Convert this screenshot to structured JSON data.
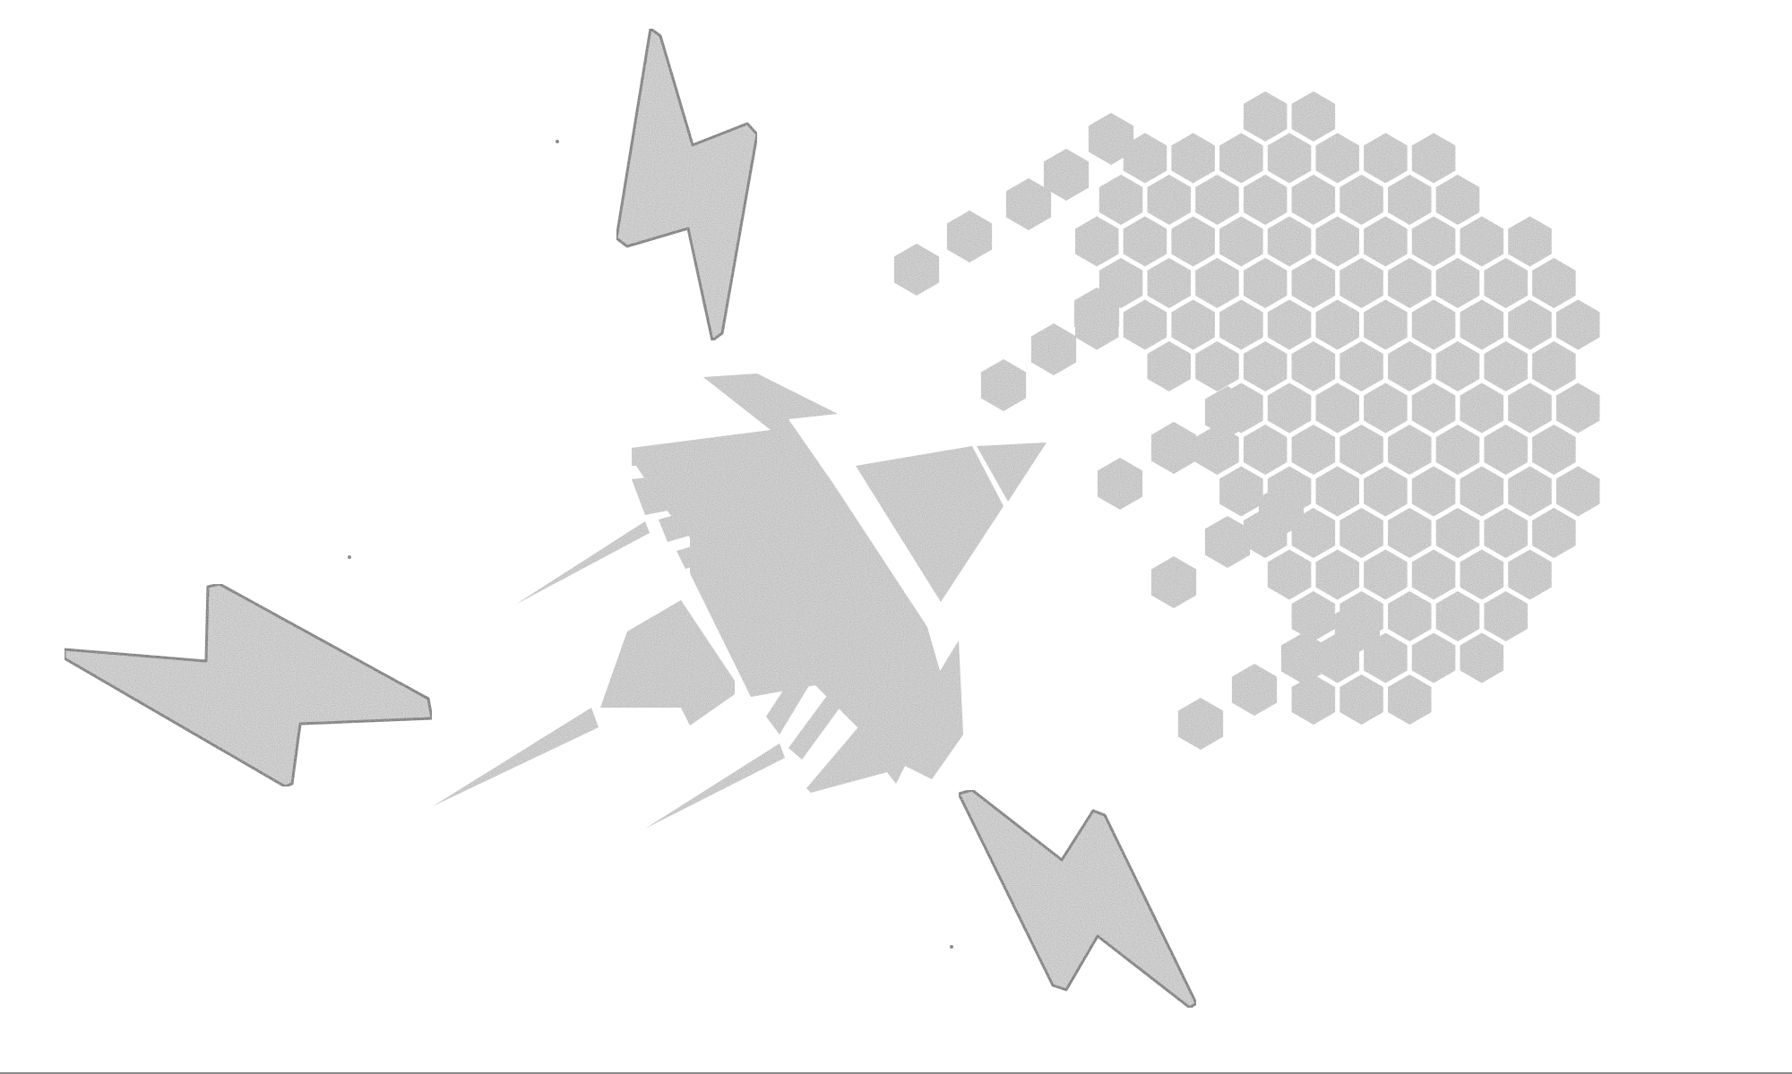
{
  "artwork": {
    "subject": "rocket-launch-illustration",
    "palette": {
      "background": "#ffffff",
      "fill": "#d2d2d2",
      "speckle": "#8c8c8c",
      "stroke": "#7a7a7a",
      "bottom_rule": "#8a8a8a"
    },
    "icons": [
      "rocket-icon",
      "lightning-bolt-icon",
      "hexagon-planet-icon"
    ]
  }
}
